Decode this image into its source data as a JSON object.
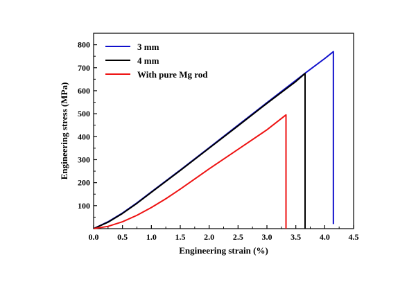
{
  "chart_data": {
    "type": "line",
    "xlabel": "Engineering strain (%)",
    "ylabel": "Engineering stress (MPa)",
    "xlim": [
      0.0,
      4.5
    ],
    "ylim": [
      0,
      850
    ],
    "xticks": [
      0.0,
      0.5,
      1.0,
      1.5,
      2.0,
      2.5,
      3.0,
      3.5,
      4.0,
      4.5
    ],
    "xtick_labels": [
      "0.0",
      "0.5",
      "1.0",
      "1.5",
      "2.0",
      "2.5",
      "3.0",
      "3.5",
      "4.0",
      "4.5"
    ],
    "yticks": [
      100,
      200,
      300,
      400,
      500,
      600,
      700,
      800
    ],
    "ytick_labels": [
      "100",
      "200",
      "300",
      "400",
      "500",
      "600",
      "700",
      "800"
    ],
    "grid": false,
    "legend_position": "top-left",
    "series": [
      {
        "name": "3 mm",
        "color": "#1010cc",
        "points": [
          [
            0.0,
            0
          ],
          [
            0.25,
            30
          ],
          [
            0.5,
            68
          ],
          [
            0.75,
            112
          ],
          [
            1.0,
            160
          ],
          [
            1.5,
            255
          ],
          [
            2.0,
            352
          ],
          [
            2.5,
            450
          ],
          [
            3.0,
            548
          ],
          [
            3.5,
            645
          ],
          [
            3.67,
            678
          ],
          [
            4.0,
            740
          ],
          [
            4.15,
            770
          ],
          [
            4.15,
            20
          ]
        ]
      },
      {
        "name": "4 mm",
        "color": "#000000",
        "points": [
          [
            0.0,
            0
          ],
          [
            0.25,
            28
          ],
          [
            0.5,
            66
          ],
          [
            0.75,
            110
          ],
          [
            1.0,
            158
          ],
          [
            1.5,
            253
          ],
          [
            2.0,
            350
          ],
          [
            2.5,
            447
          ],
          [
            3.0,
            545
          ],
          [
            3.5,
            640
          ],
          [
            3.66,
            675
          ],
          [
            3.66,
            0
          ]
        ]
      },
      {
        "name": "With pure Mg rod",
        "color": "#ee1111",
        "points": [
          [
            0.0,
            0
          ],
          [
            0.25,
            10
          ],
          [
            0.5,
            30
          ],
          [
            0.75,
            58
          ],
          [
            1.0,
            92
          ],
          [
            1.25,
            130
          ],
          [
            1.5,
            172
          ],
          [
            2.0,
            260
          ],
          [
            2.5,
            345
          ],
          [
            3.0,
            430
          ],
          [
            3.33,
            495
          ],
          [
            3.33,
            0
          ]
        ]
      }
    ]
  }
}
